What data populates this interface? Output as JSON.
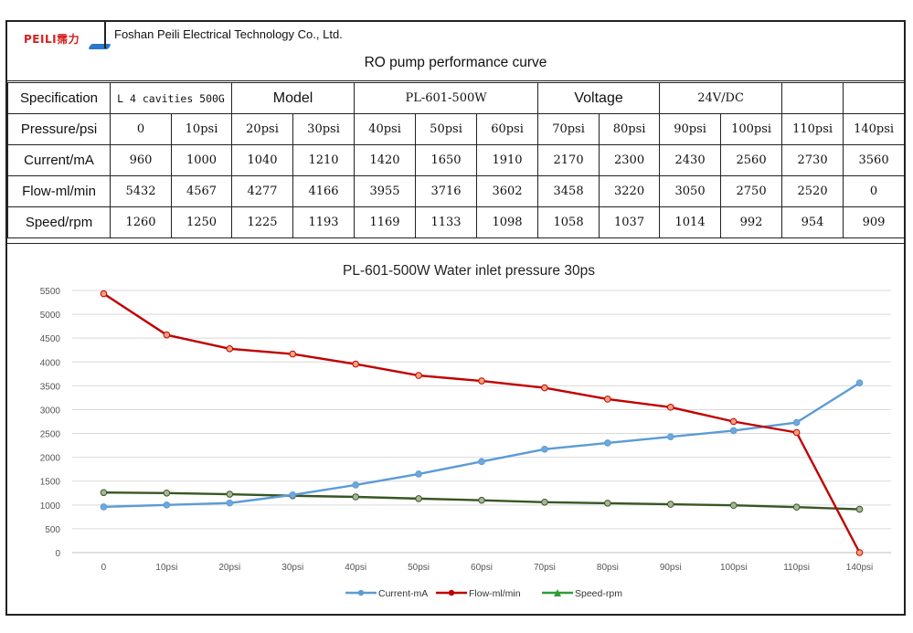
{
  "header": {
    "logo_text": "PEILI霈力",
    "company": "Foshan Peili Electrical Technology Co., Ltd.",
    "title": "RO pump performance curve"
  },
  "spec_row": {
    "spec_label": "Specification",
    "spec_value": "L 4 cavities 500G",
    "model_label": "Model",
    "model_value": "PL-601-500W",
    "voltage_label": "Voltage",
    "voltage_value": "24V/DC"
  },
  "table": {
    "rows": [
      {
        "label": "Pressure/psi",
        "cells": [
          "0",
          "10psi",
          "20psi",
          "30psi",
          "40psi",
          "50psi",
          "60psi",
          "70psi",
          "80psi",
          "90psi",
          "100psi",
          "110psi",
          "140psi"
        ]
      },
      {
        "label": "Current/mA",
        "cells": [
          "960",
          "1000",
          "1040",
          "1210",
          "1420",
          "1650",
          "1910",
          "2170",
          "2300",
          "2430",
          "2560",
          "2730",
          "3560"
        ]
      },
      {
        "label": "Flow-ml/min",
        "cells": [
          "5432",
          "4567",
          "4277",
          "4166",
          "3955",
          "3716",
          "3602",
          "3458",
          "3220",
          "3050",
          "2750",
          "2520",
          "0"
        ]
      },
      {
        "label": "Speed/rpm",
        "cells": [
          "1260",
          "1250",
          "1225",
          "1193",
          "1169",
          "1133",
          "1098",
          "1058",
          "1037",
          "1014",
          "992",
          "954",
          "909"
        ]
      }
    ]
  },
  "chart_data": {
    "type": "line",
    "title": "PL-601-500W Water inlet pressure 30ps",
    "categories": [
      "0",
      "10psi",
      "20psi",
      "30psi",
      "40psi",
      "50psi",
      "60psi",
      "70psi",
      "80psi",
      "90psi",
      "100psi",
      "110psi",
      "140psi"
    ],
    "y_ticks": [
      0,
      500,
      1000,
      1500,
      2000,
      2500,
      3000,
      3500,
      4000,
      4500,
      5000,
      5500
    ],
    "ylim": [
      0,
      5500
    ],
    "grid": true,
    "legend_position": "bottom",
    "series": [
      {
        "name": "Current-mA",
        "color": "#5b9bd5",
        "values": [
          960,
          1000,
          1040,
          1210,
          1420,
          1650,
          1910,
          2170,
          2300,
          2430,
          2560,
          2730,
          3560
        ]
      },
      {
        "name": "Flow-ml/min",
        "color": "#c00000",
        "values": [
          5432,
          4567,
          4277,
          4166,
          3955,
          3716,
          3602,
          3458,
          3220,
          3050,
          2750,
          2520,
          0
        ]
      },
      {
        "name": "Speed-rpm",
        "color": "#375623",
        "values": [
          1260,
          1250,
          1225,
          1193,
          1169,
          1133,
          1098,
          1058,
          1037,
          1014,
          992,
          954,
          909
        ]
      }
    ],
    "legend_colors": {
      "Current-mA": "#5b9bd5",
      "Flow-ml/min": "#c00000",
      "Speed-rpm": "#2e9e3a"
    },
    "marker_fills": {
      "Current-mA": "#6fa8dc",
      "Flow-ml/min": "#f4a27c",
      "Speed-rpm": "#a9b59a"
    }
  }
}
